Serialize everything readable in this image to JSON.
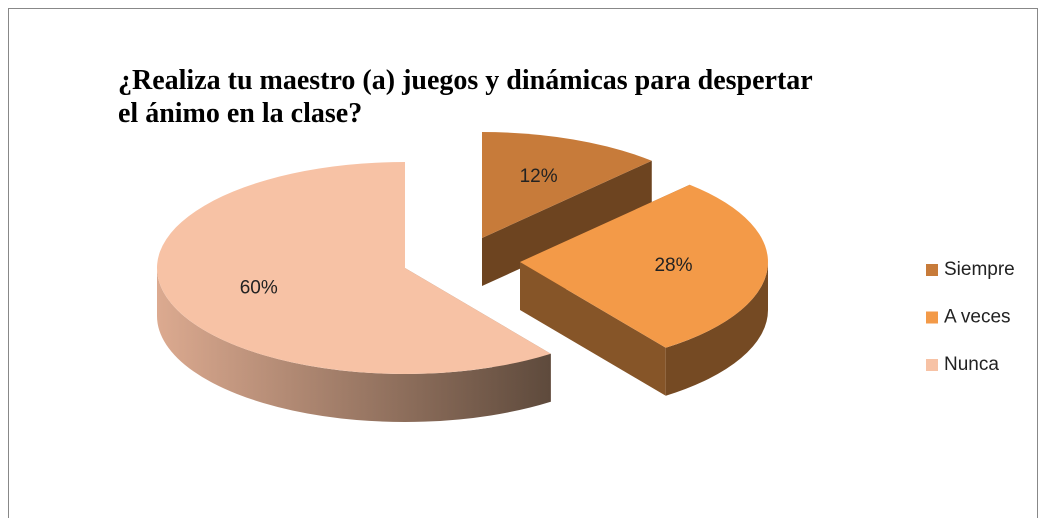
{
  "chart_data": {
    "type": "pie",
    "title": "¿Realiza tu maestro (a) juegos y dinámicas para despertar el ánimo en la clase?",
    "categories": [
      "Siempre",
      "A veces",
      "Nunca"
    ],
    "values": [
      12,
      28,
      60
    ],
    "value_labels": [
      "12%",
      "28%",
      "60%"
    ],
    "colors": [
      "#c77b3a",
      "#f39a48",
      "#f7c2a5"
    ],
    "legend": "right",
    "three_d": true
  }
}
